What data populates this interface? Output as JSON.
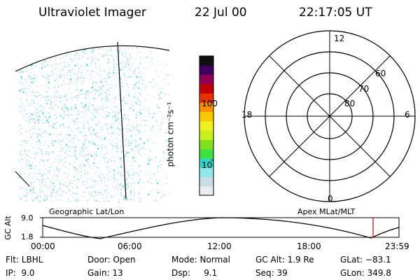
{
  "header": {
    "instrument": "Ultraviolet Imager",
    "date": "22 Jul 00",
    "time": "22:17:05 UT"
  },
  "colorbar": {
    "unit_label": "photon cm⁻²s⁻¹",
    "ticks": [
      {
        "value": 100,
        "label": "100"
      },
      {
        "value": 10,
        "label": "10"
      }
    ],
    "range": [
      2.5,
      600
    ],
    "scale": "log",
    "colors": [
      "#e8eef0",
      "#c8dde4",
      "#90e8e8",
      "#30d8c8",
      "#40e040",
      "#80e020",
      "#c8f020",
      "#f0f020",
      "#f8c800",
      "#f89000",
      "#e83000",
      "#c00000",
      "#900050",
      "#400060",
      "#101010"
    ]
  },
  "polar_plot": {
    "mlt_labels": {
      "top": "12",
      "left": "18",
      "right": "6",
      "bottom": "0"
    },
    "lat_labels": [
      "60",
      "70",
      "80"
    ]
  },
  "map_labels": {
    "left": "Geographic Lat/Lon",
    "right": "Apex MLat/MLT"
  },
  "altitude_plot": {
    "ylabel": "GC Alt",
    "y_ticks": [
      "9.0",
      "1.8"
    ],
    "x_ticks": [
      "00:00",
      "06:00",
      "12:00",
      "18:00",
      "23:59"
    ],
    "marker_color": "#cc0000"
  },
  "status": {
    "row1": {
      "filter": "Flt: LBHL",
      "door": "Door: Open",
      "mode": "Mode: Normal",
      "gc_alt": "GC Alt: 1.9 Re",
      "glat": "GLat: −83.1"
    },
    "row2": {
      "ip": "IP:  9.0",
      "gain": "Gain: 13",
      "dsp": "Dsp:     9.1",
      "seq": "Seq: 39",
      "glon": "GLon: 349.8"
    }
  }
}
